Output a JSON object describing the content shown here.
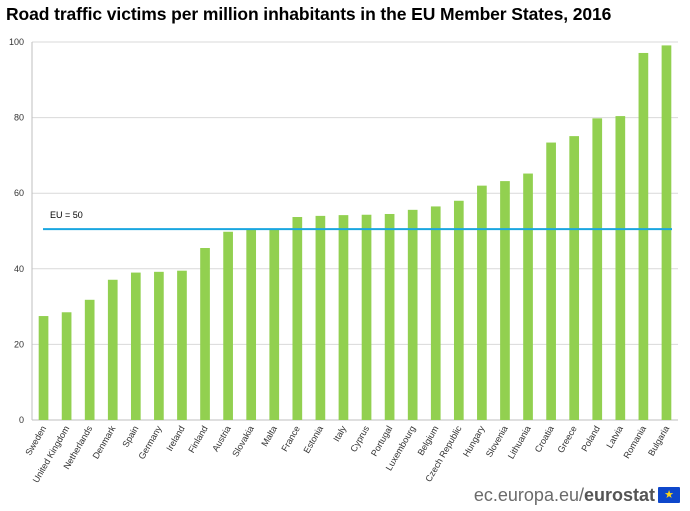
{
  "chart_data": {
    "type": "bar",
    "title": "Road traffic victims per million inhabitants in the EU Member States, 2016",
    "xlabel": "",
    "ylabel": "",
    "ylim": [
      0,
      100
    ],
    "yticks": [
      0,
      20,
      40,
      60,
      80,
      100
    ],
    "grid": true,
    "legend": "none",
    "bar_color": "#92d050",
    "reference_line": {
      "label": "EU = 50",
      "value": 50.5,
      "color": "#1aa6e0"
    },
    "categories": [
      "Sweden",
      "United Kingdom",
      "Netherlands",
      "Denmark",
      "Spain",
      "Germany",
      "Ireland",
      "Finland",
      "Austria",
      "Slovakia",
      "Malta",
      "France",
      "Estonia",
      "Italy",
      "Cyprus",
      "Portugal",
      "Luxembourg",
      "Belgium",
      "Czech Republic",
      "Hungary",
      "Slovenia",
      "Lithuania",
      "Croatia",
      "Greece",
      "Poland",
      "Latvia",
      "Romania",
      "Bulgaria"
    ],
    "values": [
      27.5,
      28.5,
      31.8,
      37.1,
      39,
      39.2,
      39.5,
      45.5,
      49.8,
      50.6,
      50.6,
      53.7,
      54,
      54.2,
      54.3,
      54.5,
      55.6,
      56.5,
      58,
      62,
      63.2,
      65.2,
      73.4,
      75.1,
      79.8,
      80.4,
      97.1,
      99.1
    ]
  },
  "footer": {
    "site": "ec.europa.eu/",
    "brand": "eurostat"
  },
  "icons": {
    "logo": "eu-flag-icon"
  }
}
